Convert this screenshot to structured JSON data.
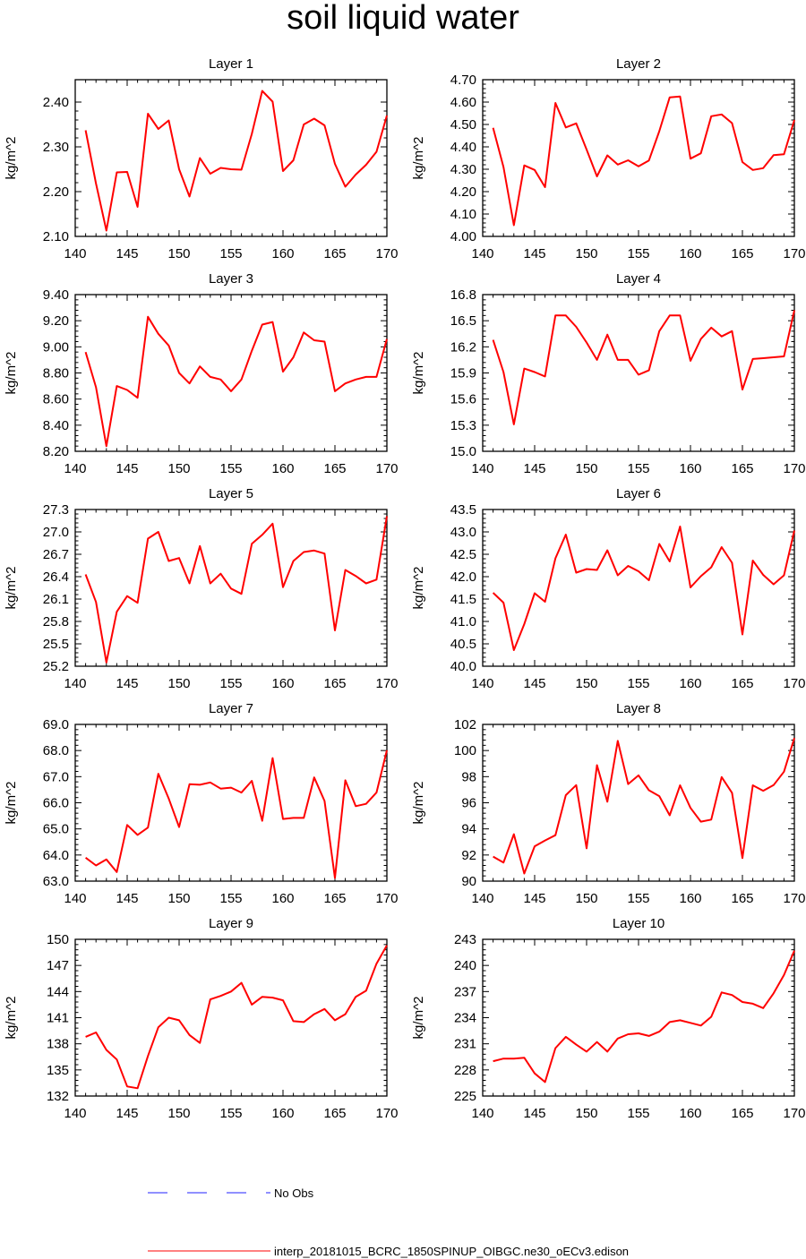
{
  "title": "soil liquid water",
  "legend": {
    "obs_label": "No Obs",
    "model_label": "interp_20181015_BCRC_1850SPINUP_OIBGC.ne30_oECv3.edison",
    "obs_color": "#2222ff",
    "model_color": "#ff0000"
  },
  "chart_data": [
    {
      "type": "line",
      "title": "Layer 1",
      "ylabel": "kg/m^2",
      "xlim": [
        140,
        170
      ],
      "ylim": [
        2.1,
        2.45
      ],
      "xticks": [
        "140",
        "145",
        "150",
        "155",
        "160",
        "165",
        "170"
      ],
      "yticks": [
        "2.10",
        "2.20",
        "2.30",
        "2.40"
      ],
      "x": [
        141,
        142,
        143,
        144,
        145,
        146,
        147,
        148,
        149,
        150,
        151,
        152,
        153,
        154,
        155,
        156,
        157,
        158,
        159,
        160,
        161,
        162,
        163,
        164,
        165,
        166,
        167,
        168,
        169,
        170
      ],
      "series": [
        {
          "values": [
            2.337,
            2.218,
            2.113,
            2.243,
            2.244,
            2.166,
            2.374,
            2.34,
            2.359,
            2.25,
            2.189,
            2.275,
            2.24,
            2.253,
            2.25,
            2.249,
            2.329,
            2.425,
            2.401,
            2.246,
            2.27,
            2.35,
            2.363,
            2.348,
            2.262,
            2.211,
            2.238,
            2.26,
            2.289,
            2.37
          ]
        }
      ]
    },
    {
      "type": "line",
      "title": "Layer 2",
      "ylabel": "kg/m^2",
      "xlim": [
        140,
        170
      ],
      "ylim": [
        4.0,
        4.7
      ],
      "xticks": [
        "140",
        "145",
        "150",
        "155",
        "160",
        "165",
        "170"
      ],
      "yticks": [
        "4.00",
        "4.10",
        "4.20",
        "4.30",
        "4.40",
        "4.50",
        "4.60",
        "4.70"
      ],
      "x": [
        141,
        142,
        143,
        144,
        145,
        146,
        147,
        148,
        149,
        150,
        151,
        152,
        153,
        154,
        155,
        156,
        157,
        158,
        159,
        160,
        161,
        162,
        163,
        164,
        165,
        166,
        167,
        168,
        169,
        170
      ],
      "series": [
        {
          "values": [
            4.485,
            4.31,
            4.05,
            4.317,
            4.297,
            4.22,
            4.596,
            4.487,
            4.505,
            4.388,
            4.268,
            4.362,
            4.321,
            4.34,
            4.313,
            4.339,
            4.47,
            4.621,
            4.625,
            4.347,
            4.371,
            4.537,
            4.545,
            4.506,
            4.332,
            4.297,
            4.305,
            4.363,
            4.367,
            4.52
          ]
        }
      ]
    },
    {
      "type": "line",
      "title": "Layer 3",
      "ylabel": "kg/m^2",
      "xlim": [
        140,
        170
      ],
      "ylim": [
        8.2,
        9.4
      ],
      "xticks": [
        "140",
        "145",
        "150",
        "155",
        "160",
        "165",
        "170"
      ],
      "yticks": [
        "8.20",
        "8.40",
        "8.60",
        "8.80",
        "9.00",
        "9.20",
        "9.40"
      ],
      "x": [
        141,
        142,
        143,
        144,
        145,
        146,
        147,
        148,
        149,
        150,
        151,
        152,
        153,
        154,
        155,
        156,
        157,
        158,
        159,
        160,
        161,
        162,
        163,
        164,
        165,
        166,
        167,
        168,
        169,
        170
      ],
      "series": [
        {
          "values": [
            8.96,
            8.69,
            8.24,
            8.7,
            8.67,
            8.61,
            9.23,
            9.1,
            9.01,
            8.8,
            8.72,
            8.85,
            8.77,
            8.75,
            8.66,
            8.75,
            8.97,
            9.17,
            9.19,
            8.81,
            8.92,
            9.11,
            9.05,
            9.04,
            8.66,
            8.72,
            8.75,
            8.77,
            8.77,
            9.06
          ]
        }
      ]
    },
    {
      "type": "line",
      "title": "Layer 4",
      "ylabel": "kg/m^2",
      "xlim": [
        140,
        170
      ],
      "ylim": [
        15.0,
        16.8
      ],
      "xticks": [
        "140",
        "145",
        "150",
        "155",
        "160",
        "165",
        "170"
      ],
      "yticks": [
        "15.0",
        "15.3",
        "15.6",
        "15.9",
        "16.2",
        "16.5",
        "16.8"
      ],
      "x": [
        141,
        142,
        143,
        144,
        145,
        146,
        147,
        148,
        149,
        150,
        151,
        152,
        153,
        154,
        155,
        156,
        157,
        158,
        159,
        160,
        161,
        162,
        163,
        164,
        165,
        166,
        167,
        168,
        169,
        170
      ],
      "series": [
        {
          "values": [
            16.28,
            15.91,
            15.31,
            15.95,
            15.91,
            15.86,
            16.56,
            16.56,
            16.43,
            16.25,
            16.05,
            16.34,
            16.05,
            16.05,
            15.88,
            15.93,
            16.38,
            16.56,
            16.56,
            16.04,
            16.29,
            16.42,
            16.32,
            16.38,
            15.71,
            16.06,
            16.07,
            16.08,
            16.09,
            16.62
          ]
        }
      ]
    },
    {
      "type": "line",
      "title": "Layer 5",
      "ylabel": "kg/m^2",
      "xlim": [
        140,
        170
      ],
      "ylim": [
        25.2,
        27.3
      ],
      "xticks": [
        "140",
        "145",
        "150",
        "155",
        "160",
        "165",
        "170"
      ],
      "yticks": [
        "25.2",
        "25.5",
        "25.8",
        "26.1",
        "26.4",
        "26.7",
        "27.0",
        "27.3"
      ],
      "x": [
        141,
        142,
        143,
        144,
        145,
        146,
        147,
        148,
        149,
        150,
        151,
        152,
        153,
        154,
        155,
        156,
        157,
        158,
        159,
        160,
        161,
        162,
        163,
        164,
        165,
        166,
        167,
        168,
        169,
        170
      ],
      "series": [
        {
          "values": [
            26.43,
            26.06,
            25.25,
            25.93,
            26.14,
            26.05,
            26.91,
            27.0,
            26.61,
            26.65,
            26.31,
            26.81,
            26.31,
            26.44,
            26.24,
            26.17,
            26.84,
            26.96,
            27.11,
            26.26,
            26.61,
            26.73,
            26.75,
            26.71,
            25.68,
            26.49,
            26.41,
            26.31,
            26.36,
            27.21
          ]
        }
      ]
    },
    {
      "type": "line",
      "title": "Layer 6",
      "ylabel": "kg/m^2",
      "xlim": [
        140,
        170
      ],
      "ylim": [
        40.0,
        43.5
      ],
      "xticks": [
        "140",
        "145",
        "150",
        "155",
        "160",
        "165",
        "170"
      ],
      "yticks": [
        "40.0",
        "40.5",
        "41.0",
        "41.5",
        "42.0",
        "42.5",
        "43.0",
        "43.5"
      ],
      "x": [
        141,
        142,
        143,
        144,
        145,
        146,
        147,
        148,
        149,
        150,
        151,
        152,
        153,
        154,
        155,
        156,
        157,
        158,
        159,
        160,
        161,
        162,
        163,
        164,
        165,
        166,
        167,
        168,
        169,
        170
      ],
      "series": [
        {
          "values": [
            41.64,
            41.42,
            40.36,
            40.94,
            41.63,
            41.44,
            42.41,
            42.94,
            42.09,
            42.17,
            42.15,
            42.59,
            42.03,
            42.24,
            42.12,
            41.92,
            42.73,
            42.34,
            43.12,
            41.76,
            42.01,
            42.21,
            42.66,
            42.31,
            40.71,
            42.36,
            42.04,
            41.83,
            42.03,
            43.03
          ]
        }
      ]
    },
    {
      "type": "line",
      "title": "Layer 7",
      "ylabel": "kg/m^2",
      "xlim": [
        140,
        170
      ],
      "ylim": [
        63.0,
        69.0
      ],
      "xticks": [
        "140",
        "145",
        "150",
        "155",
        "160",
        "165",
        "170"
      ],
      "yticks": [
        "63.0",
        "64.0",
        "65.0",
        "66.0",
        "67.0",
        "68.0",
        "69.0"
      ],
      "x": [
        141,
        142,
        143,
        144,
        145,
        146,
        147,
        148,
        149,
        150,
        151,
        152,
        153,
        154,
        155,
        156,
        157,
        158,
        159,
        160,
        161,
        162,
        163,
        164,
        165,
        166,
        167,
        168,
        169,
        170
      ],
      "series": [
        {
          "values": [
            63.9,
            63.6,
            63.83,
            63.35,
            65.15,
            64.77,
            65.05,
            67.11,
            66.16,
            65.07,
            66.71,
            66.69,
            66.78,
            66.54,
            66.58,
            66.39,
            66.84,
            65.31,
            67.71,
            65.38,
            65.42,
            65.42,
            66.97,
            66.07,
            63.12,
            66.86,
            65.87,
            65.96,
            66.39,
            68.01
          ]
        }
      ]
    },
    {
      "type": "line",
      "title": "Layer 8",
      "ylabel": "kg/m^2",
      "xlim": [
        140,
        170
      ],
      "ylim": [
        90,
        102
      ],
      "xticks": [
        "140",
        "145",
        "150",
        "155",
        "160",
        "165",
        "170"
      ],
      "yticks": [
        "90",
        "92",
        "94",
        "96",
        "98",
        "100",
        "102"
      ],
      "x": [
        141,
        142,
        143,
        144,
        145,
        146,
        147,
        148,
        149,
        150,
        151,
        152,
        153,
        154,
        155,
        156,
        157,
        158,
        159,
        160,
        161,
        162,
        163,
        164,
        165,
        166,
        167,
        168,
        169,
        170
      ],
      "series": [
        {
          "values": [
            91.88,
            91.42,
            93.59,
            90.58,
            92.67,
            93.11,
            93.52,
            96.58,
            97.35,
            92.51,
            98.88,
            96.08,
            100.74,
            97.43,
            98.1,
            96.96,
            96.51,
            95.04,
            97.34,
            95.61,
            94.55,
            94.71,
            97.97,
            96.76,
            91.77,
            97.34,
            96.92,
            97.35,
            98.38,
            100.96
          ]
        }
      ]
    },
    {
      "type": "line",
      "title": "Layer 9",
      "ylabel": "kg/m^2",
      "xlim": [
        140,
        170
      ],
      "ylim": [
        132,
        150
      ],
      "xticks": [
        "140",
        "145",
        "150",
        "155",
        "160",
        "165",
        "170"
      ],
      "yticks": [
        "132",
        "135",
        "138",
        "141",
        "144",
        "147",
        "150"
      ],
      "x": [
        141,
        142,
        143,
        144,
        145,
        146,
        147,
        148,
        149,
        150,
        151,
        152,
        153,
        154,
        155,
        156,
        157,
        158,
        159,
        160,
        161,
        162,
        163,
        164,
        165,
        166,
        167,
        168,
        169,
        170
      ],
      "series": [
        {
          "values": [
            138.8,
            139.3,
            137.3,
            136.2,
            133.1,
            132.9,
            136.6,
            139.9,
            141.0,
            140.7,
            139.0,
            138.1,
            143.1,
            143.5,
            144.0,
            145.0,
            142.5,
            143.4,
            143.3,
            143.0,
            140.6,
            140.5,
            141.4,
            142.0,
            140.7,
            141.4,
            143.4,
            144.1,
            147.2,
            149.3
          ]
        }
      ]
    },
    {
      "type": "line",
      "title": "Layer 10",
      "ylabel": "kg/m^2",
      "xlim": [
        140,
        170
      ],
      "ylim": [
        225,
        243
      ],
      "xticks": [
        "140",
        "145",
        "150",
        "155",
        "160",
        "165",
        "170"
      ],
      "yticks": [
        "225",
        "228",
        "231",
        "234",
        "237",
        "240",
        "243"
      ],
      "x": [
        141,
        142,
        143,
        144,
        145,
        146,
        147,
        148,
        149,
        150,
        151,
        152,
        153,
        154,
        155,
        156,
        157,
        158,
        159,
        160,
        161,
        162,
        163,
        164,
        165,
        166,
        167,
        168,
        169,
        170
      ],
      "series": [
        {
          "values": [
            229.0,
            229.3,
            229.3,
            229.4,
            227.6,
            226.6,
            230.5,
            231.8,
            230.9,
            230.1,
            231.2,
            230.1,
            231.6,
            232.1,
            232.2,
            231.9,
            232.4,
            233.5,
            233.7,
            233.4,
            233.1,
            234.1,
            236.9,
            236.6,
            235.8,
            235.6,
            235.1,
            236.8,
            238.9,
            241.7
          ]
        }
      ]
    }
  ]
}
